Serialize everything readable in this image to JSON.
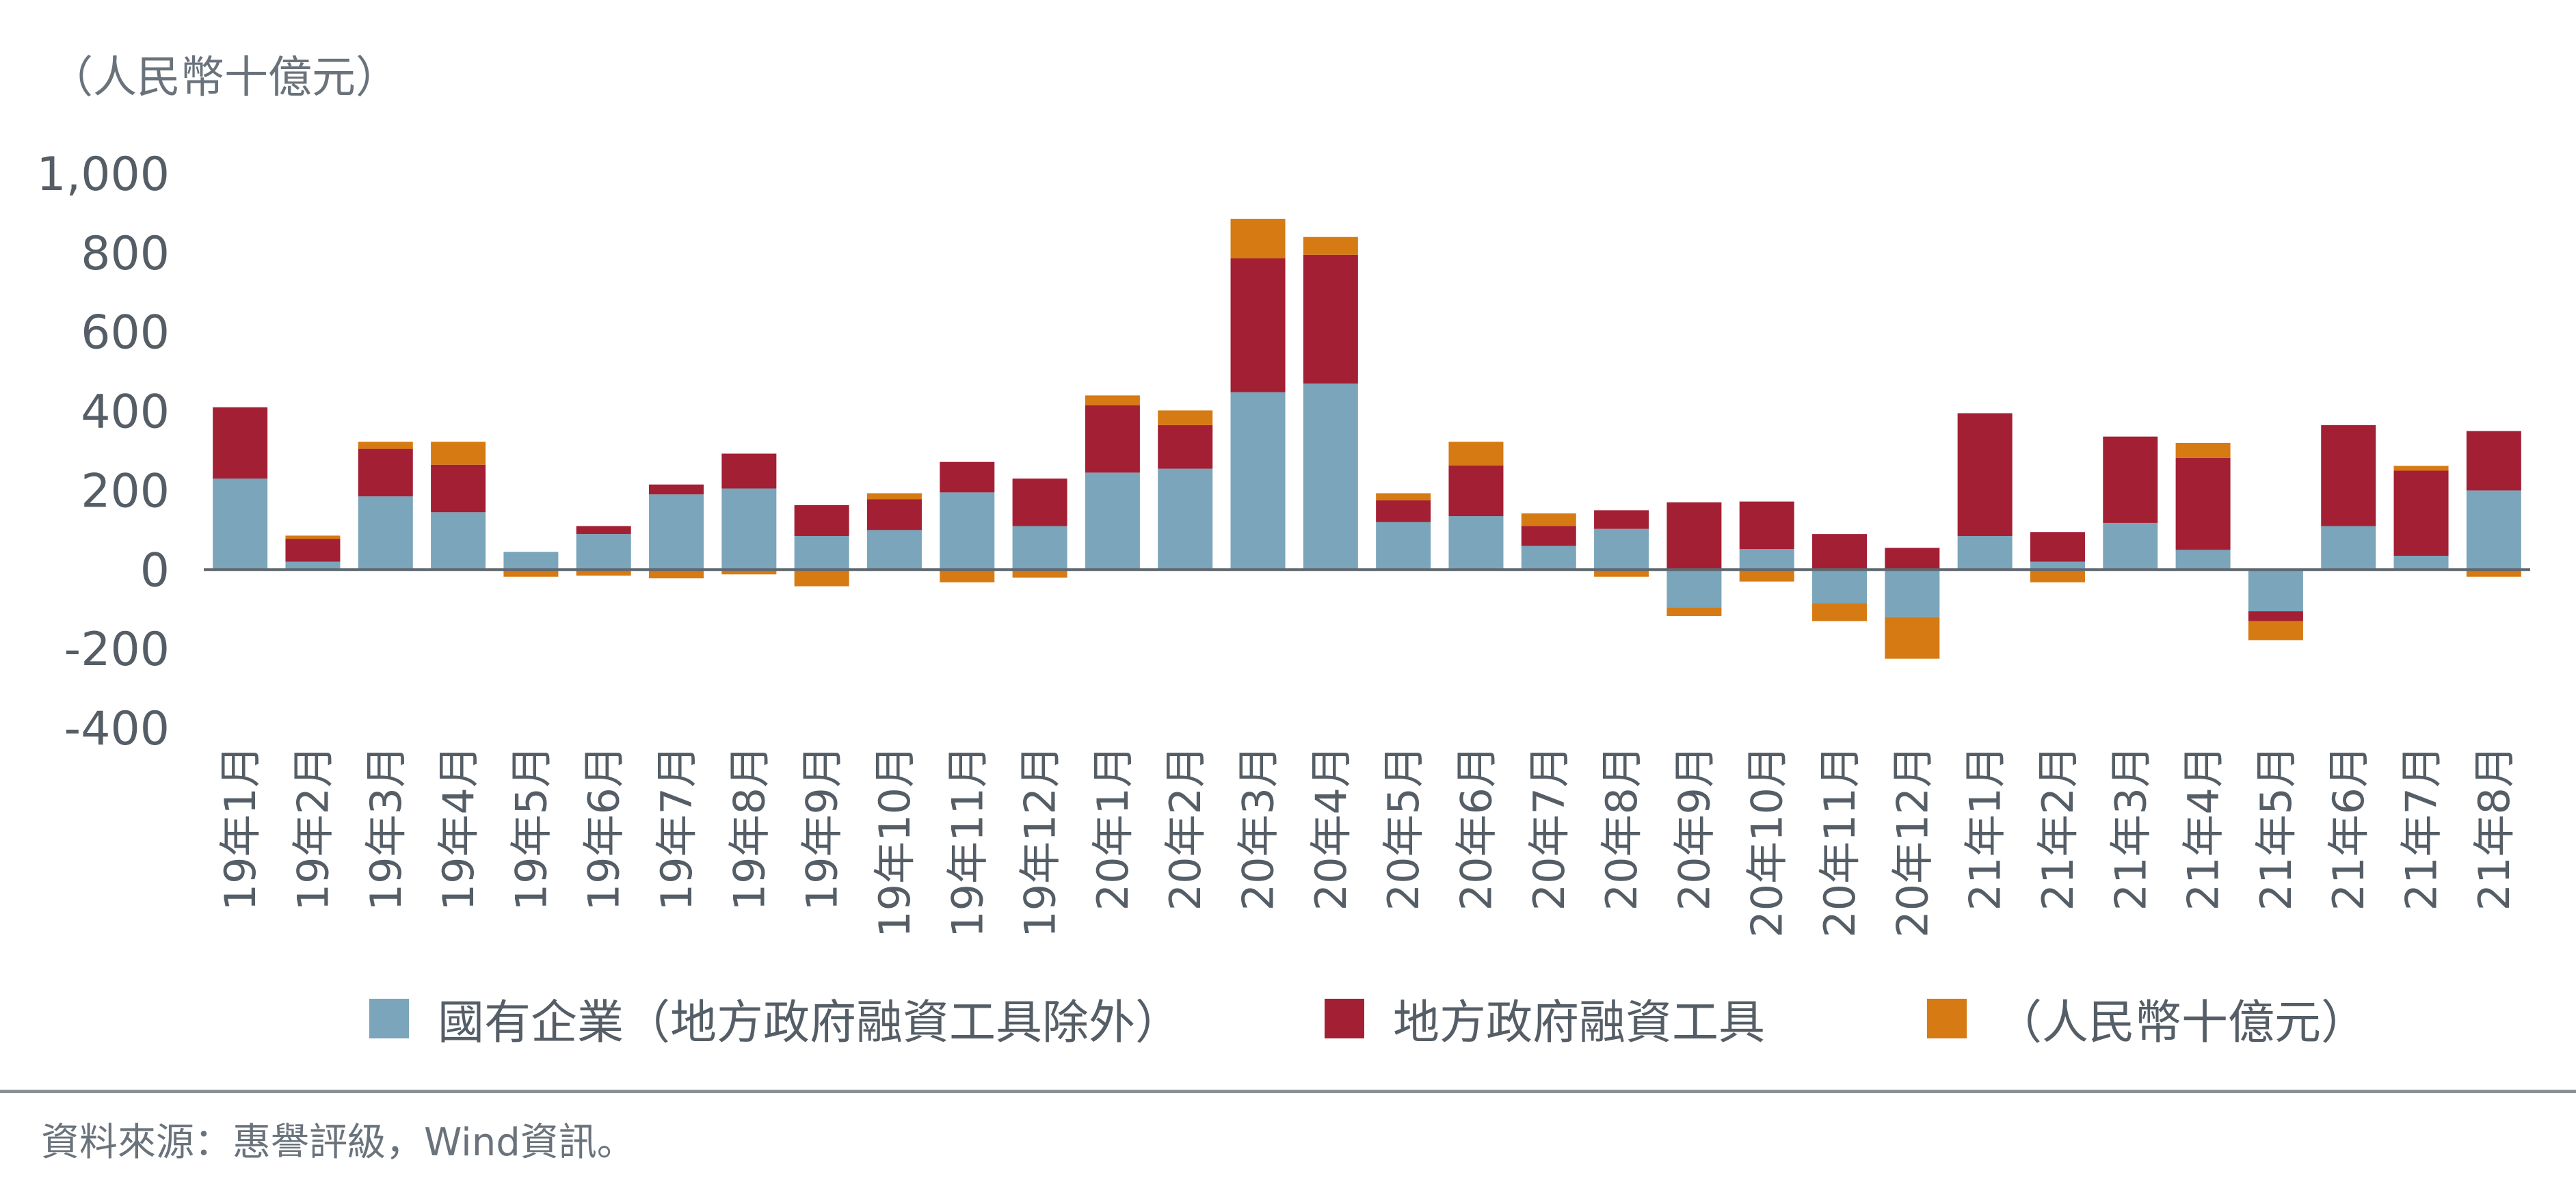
{
  "chart_data": {
    "type": "bar",
    "stacked": true,
    "unit_label": "（人民幣十億元）",
    "ylim": [
      -400,
      1000
    ],
    "yticks": [
      "1,000",
      "800",
      "600",
      "400",
      "200",
      "0",
      "-200",
      "-400"
    ],
    "ytick_values": [
      1000,
      800,
      600,
      400,
      200,
      0,
      -200,
      -400
    ],
    "grid": false,
    "legend_position": "bottom",
    "categories": [
      "19年1月",
      "19年2月",
      "19年3月",
      "19年4月",
      "19年5月",
      "19年6月",
      "19年7月",
      "19年8月",
      "19年9月",
      "19年10月",
      "19年11月",
      "19年12月",
      "20年1月",
      "20年2月",
      "20年3月",
      "20年4月",
      "20年5月",
      "20年6月",
      "20年7月",
      "20年8月",
      "20年9月",
      "20年10月",
      "20年11月",
      "20年12月",
      "21年1月",
      "21年2月",
      "21年3月",
      "21年4月",
      "21年5月",
      "21年6月",
      "21年7月",
      "21年8月"
    ],
    "series": [
      {
        "name": "國有企業（地方政府融資工具除外）",
        "color": "#7aa5ba",
        "values": [
          230,
          20,
          185,
          145,
          45,
          90,
          190,
          205,
          85,
          100,
          195,
          110,
          245,
          255,
          448,
          470,
          120,
          135,
          60,
          103,
          -95,
          52,
          -85,
          -120,
          85,
          20,
          118,
          50,
          -105,
          110,
          35,
          200
        ]
      },
      {
        "name": "地方政府融資工具",
        "color": "#a31f34",
        "values": [
          180,
          58,
          120,
          120,
          0,
          20,
          25,
          88,
          78,
          78,
          77,
          120,
          170,
          110,
          338,
          325,
          55,
          128,
          50,
          47,
          170,
          120,
          90,
          55,
          310,
          75,
          218,
          232,
          -25,
          255,
          215,
          150
        ]
      },
      {
        "name": "（人民幣十億元）",
        "color": "#d67a14",
        "values": [
          0,
          8,
          18,
          58,
          -18,
          -15,
          -22,
          -12,
          -42,
          15,
          -32,
          -20,
          25,
          37,
          100,
          45,
          18,
          60,
          32,
          -18,
          -22,
          -30,
          -45,
          -105,
          0,
          -32,
          0,
          38,
          -48,
          0,
          12,
          -18
        ]
      }
    ]
  },
  "footer": {
    "source": "資料來源：惠譽評級，Wind資訊。"
  }
}
